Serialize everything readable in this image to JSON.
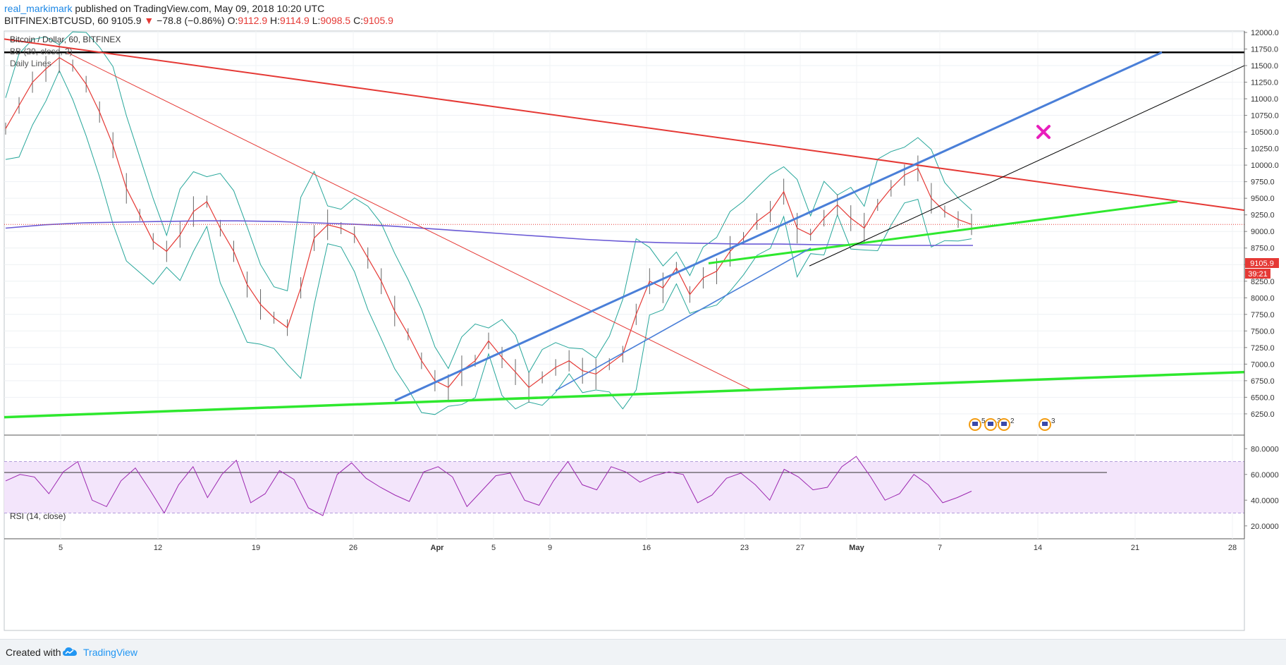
{
  "header": {
    "author": "real_markimark",
    "published": "published on TradingView.com, May 09, 2018 10:20 UTC",
    "symbol": "BITFINEX:BTCUSD, 60",
    "last": "9105.9",
    "arrow": "▼",
    "change": "−78.8 (−0.86%)",
    "o_label": "O:",
    "o_value": "9112.9",
    "h_label": "H:",
    "h_value": "9114.9",
    "l_label": "L:",
    "l_value": "9098.5",
    "c_label": "C:",
    "c_value": "9105.9"
  },
  "legend": {
    "title": "Bitcoin / Dollar, 60, BITFINEX",
    "bb": "BB (20, close, 2)",
    "daily": "Daily Lines"
  },
  "rsi_label": "RSI (14, close)",
  "price_badge": "9105.9",
  "countdown_badge": "39:21",
  "event_flags": [
    "5",
    "34",
    "2",
    "3"
  ],
  "footer": {
    "created_with": "Created with",
    "brand": "TradingView"
  },
  "colors": {
    "price_line": "#e53935",
    "bb": "#26a69a",
    "support": "#2ee82e",
    "blue_trend": "#4a7fd8",
    "ma": "#6b5bd6",
    "rsi": "#9c27b0",
    "rsi_band": "#f3e5fb",
    "marker": "#e91ebc"
  },
  "chart_data": {
    "type": "line",
    "price_axis": [
      12000,
      11750,
      11500,
      11250,
      11000,
      10750,
      10500,
      10250,
      10000,
      9750,
      9500,
      9250,
      9000,
      8750,
      8500,
      8250,
      8000,
      7750,
      7500,
      7250,
      7000,
      6750,
      6500,
      6250
    ],
    "price_axis_labels": [
      "12000.0",
      "11750.0",
      "11500.0",
      "11250.0",
      "11000.0",
      "10750.0",
      "10500.0",
      "10250.0",
      "10000.0",
      "9750.0",
      "9500.0",
      "9250.0",
      "9000.0",
      "8750.0",
      "8500.0",
      "8250.0",
      "8000.0",
      "7750.0",
      "7500.0",
      "7250.0",
      "7000.0",
      "6750.0",
      "6500.0",
      "6250.0"
    ],
    "rsi_axis_labels": [
      "80.0000",
      "60.0000",
      "40.0000",
      "20.0000"
    ],
    "rsi_axis_values": [
      80,
      60,
      40,
      20
    ],
    "rsi_band": [
      30,
      70
    ],
    "x_labels": [
      "5",
      "12",
      "19",
      "26",
      "Apr",
      "5",
      "9",
      "16",
      "23",
      "27",
      "May",
      "7",
      "14",
      "21",
      "28"
    ],
    "x_label_bold": [
      false,
      false,
      false,
      false,
      true,
      false,
      false,
      false,
      false,
      false,
      true,
      false,
      false,
      false,
      false
    ],
    "price_series": [
      10550,
      10900,
      11250,
      11450,
      11620,
      11500,
      11220,
      10800,
      10300,
      9650,
      9250,
      8850,
      8700,
      8950,
      9300,
      9450,
      9050,
      8700,
      8200,
      7900,
      7700,
      7550,
      8150,
      8900,
      9100,
      9050,
      8950,
      8600,
      8250,
      7800,
      7450,
      7050,
      6750,
      6650,
      6900,
      7050,
      7350,
      7100,
      6880,
      6650,
      6800,
      6950,
      7050,
      6900,
      6850,
      7000,
      7150,
      7750,
      8250,
      8150,
      8450,
      8050,
      8300,
      8400,
      8700,
      8900,
      9150,
      9300,
      9600,
      9050,
      8950,
      9200,
      9400,
      9200,
      9050,
      9400,
      9650,
      9850,
      9950,
      9500,
      9300,
      9180,
      9105.9
    ],
    "ma_series": [
      9050,
      9100,
      9130,
      9140,
      9150,
      9160,
      9160,
      9150,
      9130,
      9110,
      9080,
      9040,
      9000,
      8960,
      8920,
      8880,
      8850,
      8830,
      8820,
      8810,
      8810,
      8800,
      8800,
      8790,
      8790,
      8790
    ],
    "rsi_series": [
      55,
      60,
      58,
      45,
      62,
      70,
      40,
      35,
      55,
      65,
      48,
      30,
      52,
      66,
      42,
      60,
      71,
      38,
      45,
      63,
      56,
      34,
      28,
      60,
      69,
      57,
      50,
      44,
      39,
      62,
      66,
      58,
      35,
      47,
      59,
      61,
      40,
      36,
      55,
      70,
      52,
      48,
      66,
      62,
      54,
      59,
      62,
      60,
      38,
      44,
      57,
      61,
      52,
      40,
      64,
      58,
      48,
      50,
      66,
      74,
      58,
      40,
      45,
      60,
      52,
      38,
      42,
      47
    ],
    "annotations": [
      "support line",
      "resistance line",
      "ascending channel",
      "magenta cross marker"
    ]
  }
}
